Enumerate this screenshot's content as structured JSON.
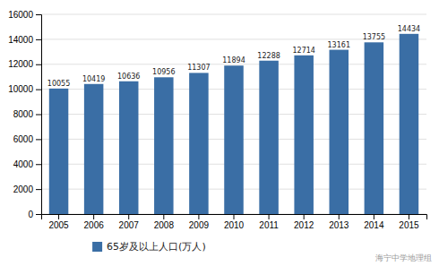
{
  "chart_data": {
    "type": "bar",
    "categories": [
      "2005",
      "2006",
      "2007",
      "2008",
      "2009",
      "2010",
      "2011",
      "2012",
      "2013",
      "2014",
      "2015"
    ],
    "series": [
      {
        "name": "65岁及以上人口(万人)",
        "color": "#3A6EA5",
        "values": [
          10055,
          10419,
          10636,
          10956,
          11307,
          11894,
          12288,
          12714,
          13161,
          13755,
          14434
        ]
      }
    ],
    "ylim": [
      0,
      16000
    ],
    "yticks": [
      0,
      2000,
      4000,
      6000,
      8000,
      10000,
      12000,
      14000,
      16000
    ],
    "grid": true,
    "legend": "bottom",
    "data_labels": true,
    "annotation": "海宁中学地理组"
  }
}
